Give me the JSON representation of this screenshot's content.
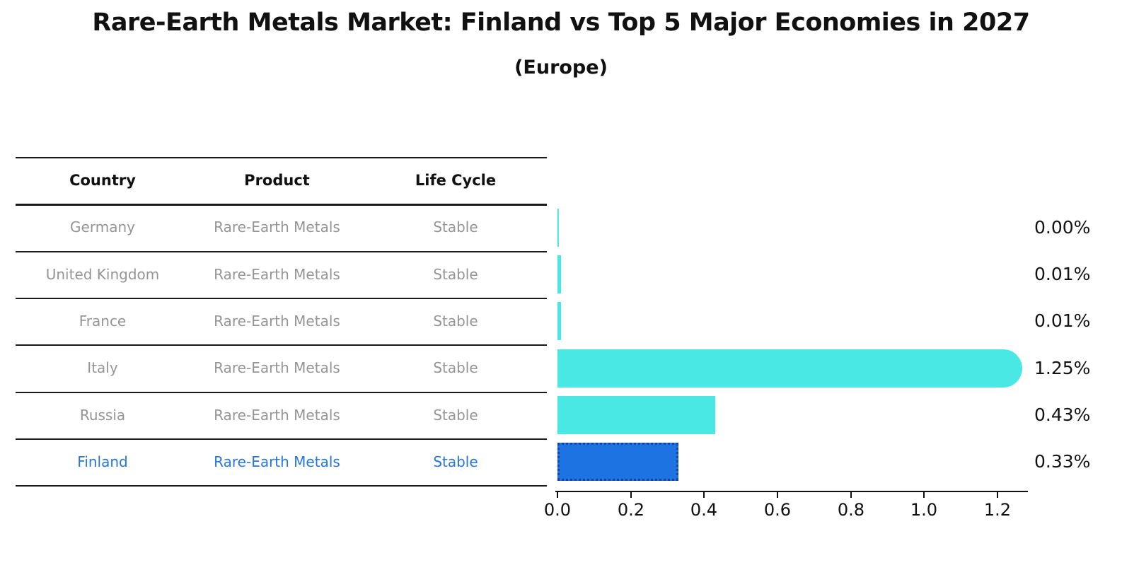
{
  "title": "Rare-Earth Metals Market: Finland vs Top 5 Major Economies in 2027",
  "subtitle": "(Europe)",
  "table": {
    "headers": [
      "Country",
      "Product",
      "Life Cycle"
    ],
    "rows": [
      {
        "country": "Germany",
        "product": "Rare-Earth Metals",
        "life_cycle": "Stable",
        "highlight": false
      },
      {
        "country": "United Kingdom",
        "product": "Rare-Earth Metals",
        "life_cycle": "Stable",
        "highlight": false
      },
      {
        "country": "France",
        "product": "Rare-Earth Metals",
        "life_cycle": "Stable",
        "highlight": false
      },
      {
        "country": "Italy",
        "product": "Rare-Earth Metals",
        "life_cycle": "Stable",
        "highlight": false
      },
      {
        "country": "Russia",
        "product": "Rare-Earth Metals",
        "life_cycle": "Stable",
        "highlight": false
      },
      {
        "country": "Finland",
        "product": "Rare-Earth Metals",
        "life_cycle": "Stable",
        "highlight": true
      }
    ]
  },
  "chart_data": {
    "type": "bar",
    "orientation": "horizontal",
    "title": "Rare-Earth Metals Market: Finland vs Top 5 Major Economies in 2027 (Europe)",
    "categories": [
      "Germany",
      "United Kingdom",
      "France",
      "Italy",
      "Russia",
      "Finland"
    ],
    "values": [
      0.0,
      0.01,
      0.01,
      1.25,
      0.43,
      0.33
    ],
    "value_labels": [
      "0.00%",
      "0.01%",
      "0.01%",
      "1.25%",
      "0.43%",
      "0.33%"
    ],
    "x_ticks": [
      "0.0",
      "0.2",
      "0.4",
      "0.6",
      "0.8",
      "1.0",
      "1.2"
    ],
    "xlim": [
      0,
      1.28
    ],
    "grid": false,
    "legend": "none",
    "bar_color": "#4ae8e4",
    "highlight_bar_color": "#1e73e3",
    "highlight_border_color": "#1b4399",
    "highlight_text_color": "#2577db",
    "highlight_index": 5,
    "rounded_bar_index": 3
  }
}
